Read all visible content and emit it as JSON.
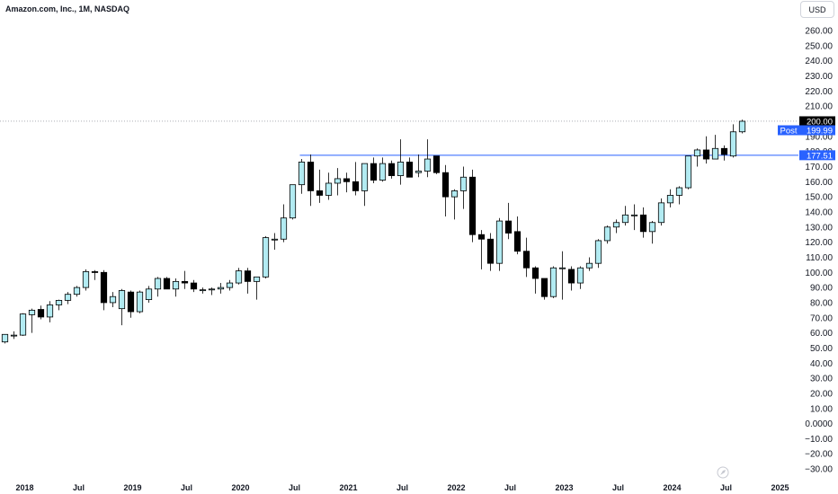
{
  "header": {
    "title": "Amazon.com, Inc., 1M, NASDAQ",
    "currency": "USD"
  },
  "colors": {
    "up_fill": "#b2ebf2",
    "down_fill": "#000000",
    "outline": "#000000",
    "level_line": "#2962ff",
    "price_tag_bg": "#000000",
    "post_tag_bg": "#2962ff",
    "axis_text": "#131722"
  },
  "chart_data": {
    "type": "candlestick",
    "ylim": [
      -30,
      270
    ],
    "y_ticks": [
      "260.00",
      "250.00",
      "240.00",
      "230.00",
      "220.00",
      "210.00",
      "200.00",
      "190.00",
      "180.00",
      "170.00",
      "160.00",
      "150.00",
      "140.00",
      "130.00",
      "120.00",
      "110.00",
      "100.00",
      "90.00",
      "80.00",
      "70.00",
      "60.00",
      "50.00",
      "40.00",
      "30.00",
      "20.00",
      "10.00",
      "0.0000",
      "−10.00",
      "−20.00",
      "−30.00"
    ],
    "y_tick_values": [
      260,
      250,
      240,
      230,
      220,
      210,
      200,
      190,
      180,
      170,
      160,
      150,
      140,
      130,
      120,
      110,
      100,
      90,
      80,
      70,
      60,
      50,
      40,
      30,
      20,
      10,
      0,
      -10,
      -20,
      -30
    ],
    "x_ticks": [
      {
        "label": "2018",
        "month_index": 0
      },
      {
        "label": "Jul",
        "month_index": 6
      },
      {
        "label": "2019",
        "month_index": 12
      },
      {
        "label": "Jul",
        "month_index": 18
      },
      {
        "label": "2020",
        "month_index": 24
      },
      {
        "label": "Jul",
        "month_index": 30
      },
      {
        "label": "2021",
        "month_index": 36
      },
      {
        "label": "Jul",
        "month_index": 42
      },
      {
        "label": "2022",
        "month_index": 48
      },
      {
        "label": "Jul",
        "month_index": 54
      },
      {
        "label": "2023",
        "month_index": 60
      },
      {
        "label": "Jul",
        "month_index": 66
      },
      {
        "label": "2024",
        "month_index": 72
      },
      {
        "label": "Jul",
        "month_index": 78
      },
      {
        "label": "2025",
        "month_index": 84
      }
    ],
    "first_month": "2017-11",
    "candles": [
      {
        "o": 54,
        "h": 59,
        "l": 53,
        "c": 59
      },
      {
        "o": 58.5,
        "h": 61,
        "l": 56,
        "c": 58.5
      },
      {
        "o": 58.5,
        "h": 73,
        "l": 58,
        "c": 72.5
      },
      {
        "o": 72,
        "h": 76,
        "l": 60,
        "c": 75
      },
      {
        "o": 75.5,
        "h": 78,
        "l": 69,
        "c": 70.5
      },
      {
        "o": 70.5,
        "h": 81,
        "l": 67,
        "c": 78.5
      },
      {
        "o": 78.5,
        "h": 82,
        "l": 75,
        "c": 81.5
      },
      {
        "o": 81.5,
        "h": 87,
        "l": 79,
        "c": 85.5
      },
      {
        "o": 85.5,
        "h": 91,
        "l": 84,
        "c": 90
      },
      {
        "o": 90,
        "h": 102,
        "l": 88,
        "c": 100.5
      },
      {
        "o": 100.5,
        "h": 101.5,
        "l": 95,
        "c": 100
      },
      {
        "o": 100,
        "h": 101.5,
        "l": 75,
        "c": 80
      },
      {
        "o": 80,
        "h": 87,
        "l": 77,
        "c": 84
      },
      {
        "o": 76,
        "h": 89,
        "l": 65,
        "c": 88
      },
      {
        "o": 87,
        "h": 88,
        "l": 70,
        "c": 74
      },
      {
        "o": 74,
        "h": 88,
        "l": 73,
        "c": 87
      },
      {
        "o": 82,
        "h": 91,
        "l": 80,
        "c": 89
      },
      {
        "o": 89,
        "h": 97,
        "l": 84,
        "c": 96
      },
      {
        "o": 96,
        "h": 97,
        "l": 89,
        "c": 89
      },
      {
        "o": 89,
        "h": 96,
        "l": 84,
        "c": 94
      },
      {
        "o": 94,
        "h": 101,
        "l": 89,
        "c": 93
      },
      {
        "o": 93,
        "h": 95,
        "l": 87,
        "c": 89
      },
      {
        "o": 88,
        "h": 90,
        "l": 86,
        "c": 88.5
      },
      {
        "o": 88.5,
        "h": 90,
        "l": 85,
        "c": 89
      },
      {
        "o": 89,
        "h": 93,
        "l": 86,
        "c": 90
      },
      {
        "o": 90,
        "h": 95,
        "l": 88,
        "c": 93
      },
      {
        "o": 93,
        "h": 103,
        "l": 92,
        "c": 101
      },
      {
        "o": 101,
        "h": 103,
        "l": 86,
        "c": 94
      },
      {
        "o": 94,
        "h": 97,
        "l": 82,
        "c": 97
      },
      {
        "o": 97,
        "h": 124,
        "l": 96,
        "c": 123
      },
      {
        "o": 122,
        "h": 126,
        "l": 115,
        "c": 122
      },
      {
        "o": 122,
        "h": 145,
        "l": 120,
        "c": 136
      },
      {
        "o": 136,
        "h": 157,
        "l": 135,
        "c": 158
      },
      {
        "o": 158,
        "h": 175,
        "l": 152,
        "c": 173
      },
      {
        "o": 173,
        "h": 178,
        "l": 144,
        "c": 154
      },
      {
        "o": 154,
        "h": 168,
        "l": 146,
        "c": 151
      },
      {
        "o": 151,
        "h": 166,
        "l": 148,
        "c": 159
      },
      {
        "o": 159,
        "h": 169,
        "l": 151,
        "c": 162
      },
      {
        "o": 162,
        "h": 166,
        "l": 153,
        "c": 160
      },
      {
        "o": 160,
        "h": 173,
        "l": 151,
        "c": 154
      },
      {
        "o": 154,
        "h": 172,
        "l": 144,
        "c": 172
      },
      {
        "o": 172,
        "h": 176,
        "l": 159,
        "c": 161
      },
      {
        "o": 161,
        "h": 176,
        "l": 160,
        "c": 172
      },
      {
        "o": 172,
        "h": 174,
        "l": 162,
        "c": 164
      },
      {
        "o": 164,
        "h": 188,
        "l": 158,
        "c": 173
      },
      {
        "o": 173,
        "h": 176,
        "l": 165,
        "c": 163
      },
      {
        "o": 166,
        "h": 178,
        "l": 163,
        "c": 167
      },
      {
        "o": 167,
        "h": 188,
        "l": 163,
        "c": 175
      },
      {
        "o": 177,
        "h": 177,
        "l": 165,
        "c": 166
      },
      {
        "o": 166,
        "h": 171,
        "l": 137,
        "c": 150
      },
      {
        "o": 150,
        "h": 155,
        "l": 135,
        "c": 154
      },
      {
        "o": 154,
        "h": 170,
        "l": 142,
        "c": 163
      },
      {
        "o": 163,
        "h": 168,
        "l": 120,
        "c": 125
      },
      {
        "o": 125,
        "h": 128,
        "l": 102,
        "c": 122
      },
      {
        "o": 122,
        "h": 126,
        "l": 101,
        "c": 106
      },
      {
        "o": 106,
        "h": 136,
        "l": 101,
        "c": 134
      },
      {
        "o": 134,
        "h": 146,
        "l": 122,
        "c": 126
      },
      {
        "o": 127,
        "h": 137,
        "l": 112,
        "c": 114
      },
      {
        "o": 114,
        "h": 123,
        "l": 97,
        "c": 103
      },
      {
        "o": 103,
        "h": 104,
        "l": 86,
        "c": 96
      },
      {
        "o": 96,
        "h": 96,
        "l": 82,
        "c": 84
      },
      {
        "o": 84,
        "h": 104,
        "l": 83,
        "c": 103
      },
      {
        "o": 103,
        "h": 114,
        "l": 82,
        "c": 103
      },
      {
        "o": 102,
        "h": 104,
        "l": 88,
        "c": 93
      },
      {
        "o": 93,
        "h": 104,
        "l": 89,
        "c": 103
      },
      {
        "o": 103,
        "h": 110,
        "l": 101,
        "c": 106
      },
      {
        "o": 106,
        "h": 122,
        "l": 103,
        "c": 121
      },
      {
        "o": 121,
        "h": 131,
        "l": 119,
        "c": 130
      },
      {
        "o": 130,
        "h": 135,
        "l": 126,
        "c": 133
      },
      {
        "o": 133,
        "h": 144,
        "l": 131,
        "c": 138
      },
      {
        "o": 138,
        "h": 145,
        "l": 128,
        "c": 138
      },
      {
        "o": 138,
        "h": 143,
        "l": 123,
        "c": 127
      },
      {
        "o": 127,
        "h": 134,
        "l": 119,
        "c": 133
      },
      {
        "o": 133,
        "h": 149,
        "l": 131,
        "c": 146
      },
      {
        "o": 146,
        "h": 155,
        "l": 143,
        "c": 151
      },
      {
        "o": 151,
        "h": 157,
        "l": 145,
        "c": 156
      },
      {
        "o": 156,
        "h": 177,
        "l": 155,
        "c": 177
      },
      {
        "o": 177,
        "h": 182,
        "l": 170,
        "c": 181
      },
      {
        "o": 181,
        "h": 190,
        "l": 172,
        "c": 175
      },
      {
        "o": 175,
        "h": 191,
        "l": 176,
        "c": 182
      },
      {
        "o": 182,
        "h": 184,
        "l": 174,
        "c": 178
      },
      {
        "o": 177,
        "h": 198,
        "l": 176,
        "c": 193
      },
      {
        "o": 193,
        "h": 201,
        "l": 192,
        "c": 200
      }
    ]
  },
  "price_tags": {
    "last": "200.00",
    "post_label": "Post",
    "post_value": "199.99",
    "level": "177.51"
  }
}
